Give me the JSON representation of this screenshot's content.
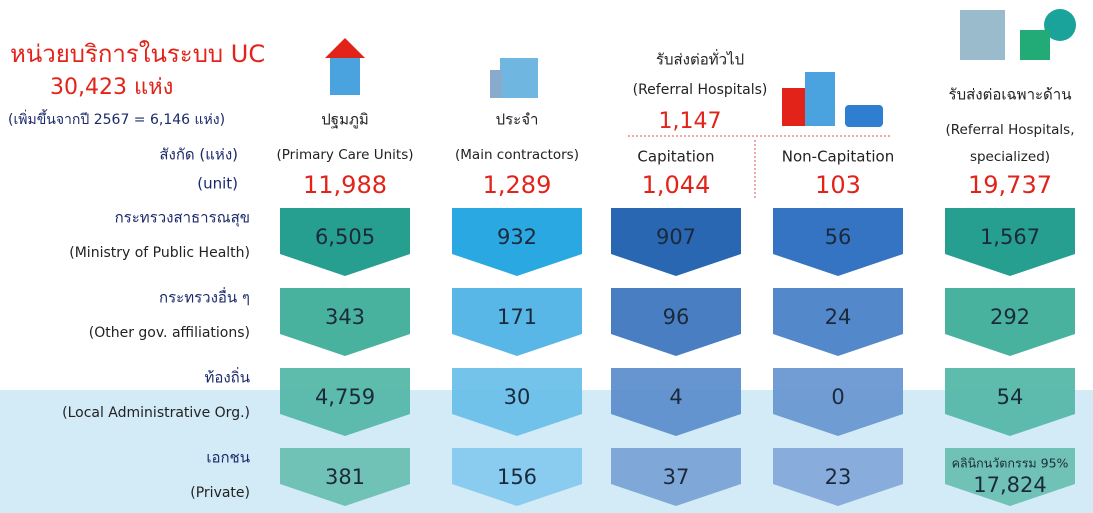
{
  "header": {
    "title": "หน่วยบริการในระบบ UC",
    "total": "30,423 แห่ง",
    "increase": "(เพิ่มขึ้นจากปี 2567 = 6,146 แห่ง)",
    "unit_th": "สังกัด (แห่ง)",
    "unit_en": "(unit)"
  },
  "referral_group": {
    "title": "รับส่งต่อทั่วไป",
    "subtitle": "(Referral Hospitals)",
    "total": "1,147"
  },
  "rows": [
    {
      "th": "กระทรวงสาธารณสุข",
      "en": "(Ministry of Public Health)"
    },
    {
      "th": "กระทรวงอื่น ๆ",
      "en": "(Other gov. affiliations)"
    },
    {
      "th": "ท้องถิ่น",
      "en": "(Local Administrative Org.)"
    },
    {
      "th": "เอกชน",
      "en": "(Private)"
    }
  ],
  "columns": [
    {
      "name": "ปฐมภูมิ",
      "name_en": "(Primary Care Units)",
      "total": "11,988",
      "values": [
        "6,505",
        "343",
        "4,759",
        "381"
      ]
    },
    {
      "name": "ประจำ",
      "name_en": "(Main contractors)",
      "total": "1,289",
      "values": [
        "932",
        "171",
        "30",
        "156"
      ]
    },
    {
      "name": "Capitation",
      "total": "1,044",
      "values": [
        "907",
        "96",
        "4",
        "37"
      ]
    },
    {
      "name": "Non-Capitation",
      "total": "103",
      "values": [
        "56",
        "24",
        "0",
        "23"
      ]
    },
    {
      "name": "รับส่งต่อเฉพาะด้าน",
      "name_en": "(Referral Hospitals,",
      "name_en2": "specialized)",
      "total": "19,737",
      "values": [
        "1,567",
        "292",
        "54",
        "17,824"
      ],
      "note": "คลินิกนวัตกรรม 95%"
    }
  ]
}
